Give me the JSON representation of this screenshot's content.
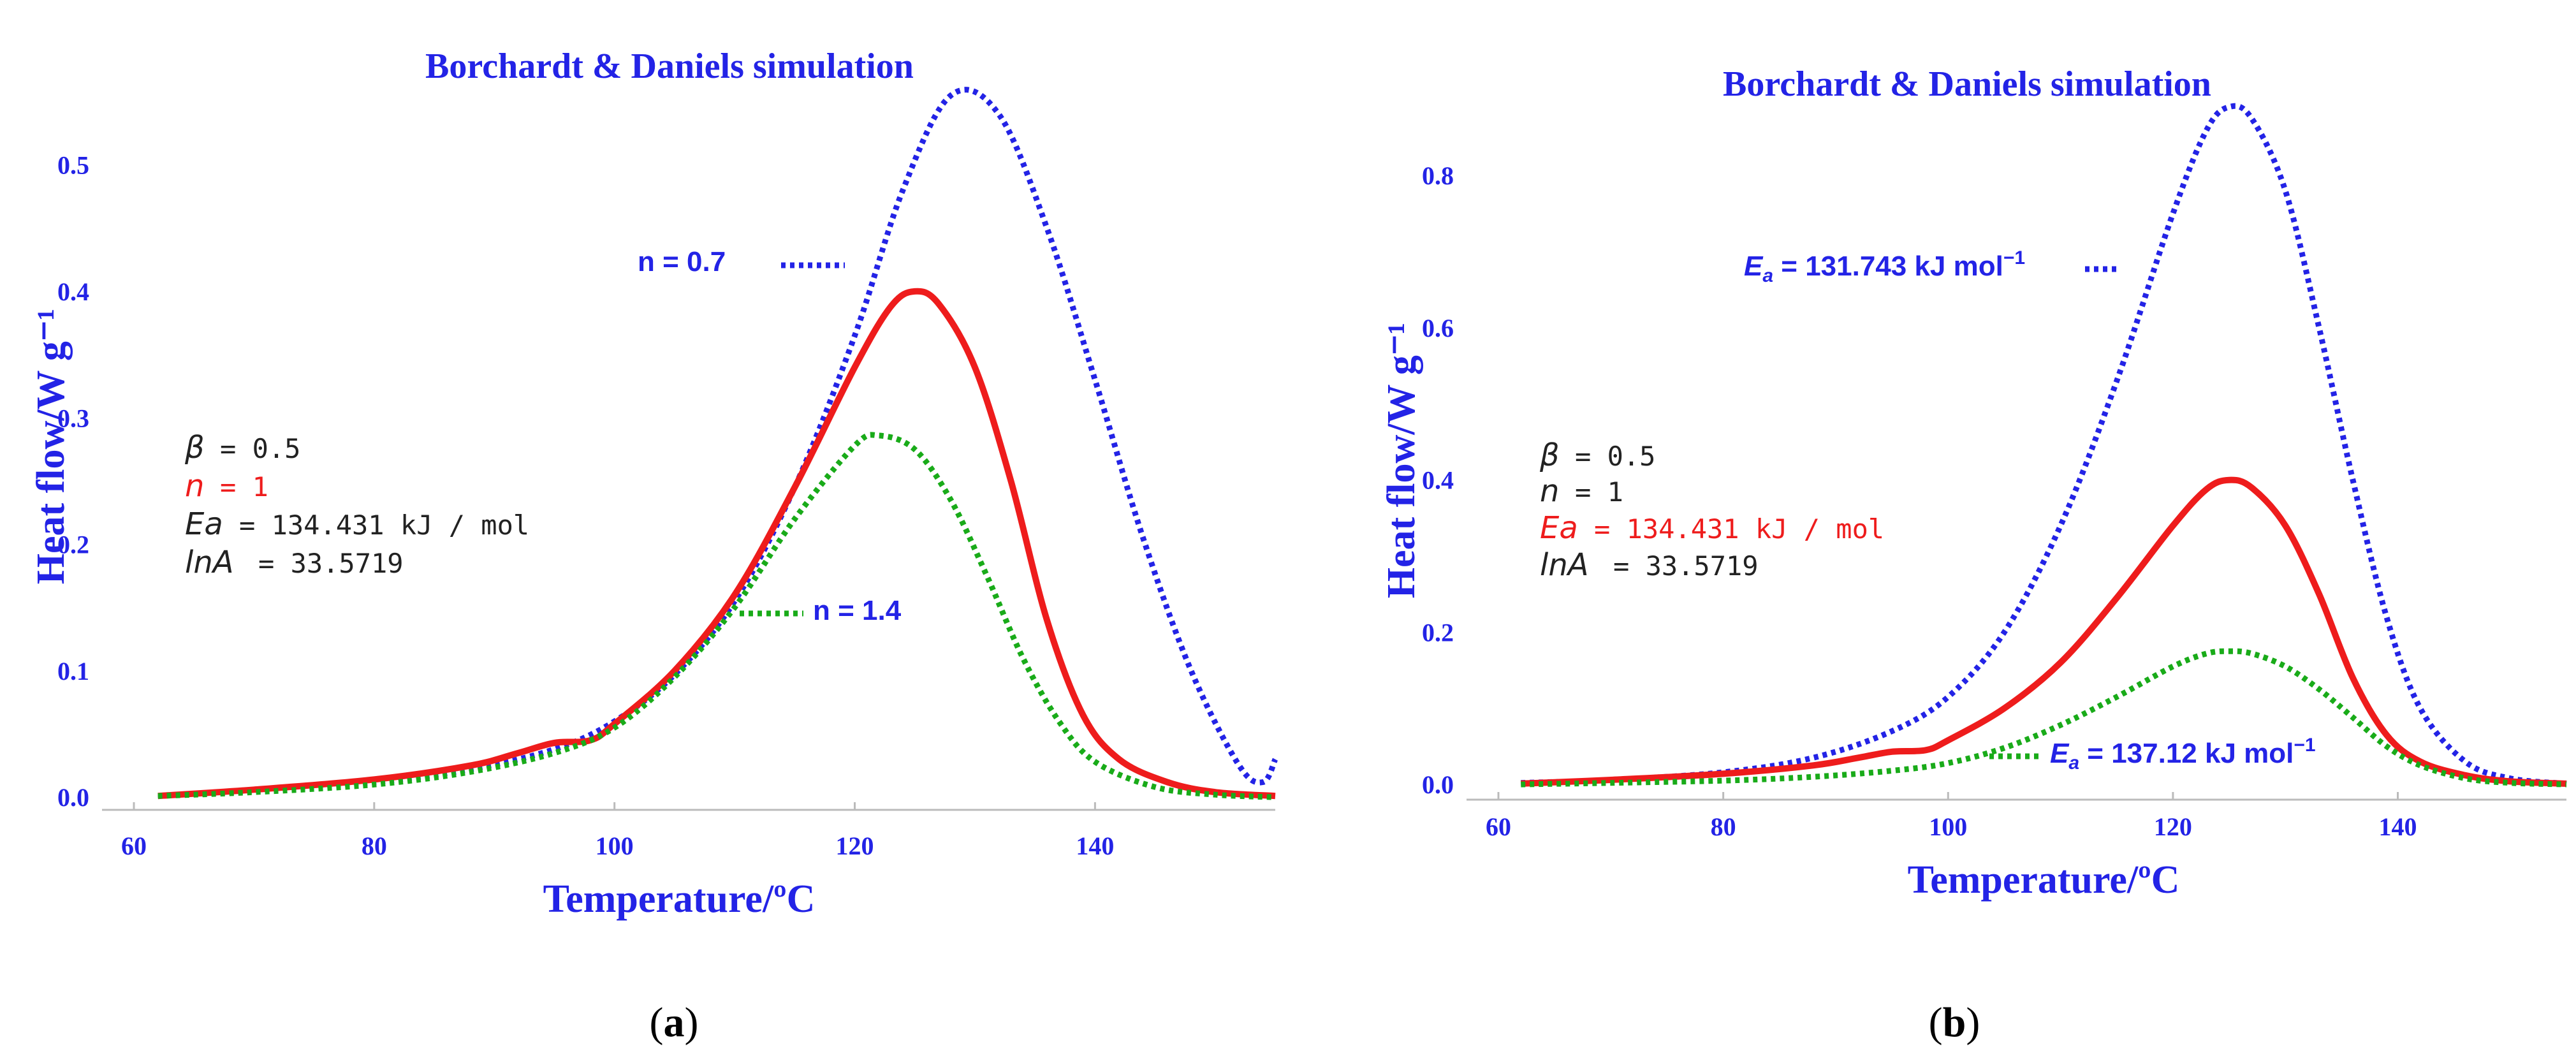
{
  "colors": {
    "blue": "#2323e6",
    "red": "#ee1c1c",
    "green": "#19ab19",
    "black": "#222222"
  },
  "chart_data": [
    {
      "type": "line",
      "panel_label": "a",
      "title": "Borchardt & Daniels simulation",
      "xlabel": "Temperature/ºC",
      "ylabel": "Heat flow/W g⁻¹",
      "xlim": [
        60,
        155
      ],
      "ylim": [
        -0.01,
        0.58
      ],
      "xticks": [
        60,
        80,
        100,
        120,
        140
      ],
      "xtick_labels": [
        "60",
        "80",
        "100",
        "120",
        "140"
      ],
      "yticks": [
        0.0,
        0.1,
        0.2,
        0.3,
        0.4,
        0.5
      ],
      "ytick_labels": [
        "0.0",
        "0.1",
        "0.2",
        "0.3",
        "0.4",
        "0.5"
      ],
      "params": [
        {
          "sym": "β",
          "val": "= 0.5",
          "color": "black"
        },
        {
          "sym": "n",
          "val": "= 1",
          "color": "red"
        },
        {
          "sym": "Ea",
          "val": "= 134.431 kJ / mol",
          "color": "black"
        },
        {
          "sym": "lnA",
          "val": "= 33.5719",
          "color": "black"
        }
      ],
      "annotations": [
        {
          "text": "n = 0.7",
          "series": "n=0.7"
        },
        {
          "text": "n = 1.4",
          "series": "n=1.4"
        }
      ],
      "series": [
        {
          "name": "n=0.7",
          "color": "blue",
          "style": "dotted",
          "x": [
            62,
            70,
            80,
            88,
            95,
            100,
            105,
            110,
            115,
            120,
            124,
            128,
            132,
            136,
            140,
            144,
            148,
            152,
            154,
            155
          ],
          "y": [
            0.001,
            0.005,
            0.012,
            0.022,
            0.038,
            0.06,
            0.097,
            0.155,
            0.245,
            0.365,
            0.48,
            0.555,
            0.54,
            0.45,
            0.33,
            0.205,
            0.1,
            0.025,
            0.012,
            0.03
          ]
        },
        {
          "name": "n=1",
          "color": "red",
          "style": "solid",
          "x": [
            62,
            70,
            80,
            88,
            92,
            95,
            98,
            100,
            105,
            110,
            115,
            120,
            123,
            125,
            127,
            130,
            133,
            136,
            139,
            142,
            146,
            150,
            155
          ],
          "y": [
            0.001,
            0.006,
            0.014,
            0.025,
            0.035,
            0.043,
            0.045,
            0.058,
            0.1,
            0.16,
            0.245,
            0.34,
            0.388,
            0.4,
            0.39,
            0.34,
            0.25,
            0.14,
            0.065,
            0.03,
            0.012,
            0.004,
            0.001
          ]
        },
        {
          "name": "n=1.4",
          "color": "green",
          "style": "dotted",
          "x": [
            62,
            70,
            80,
            88,
            95,
            100,
            105,
            110,
            115,
            120,
            122,
            125,
            128,
            131,
            134,
            137,
            140,
            145,
            150,
            155
          ],
          "y": [
            0.001,
            0.004,
            0.01,
            0.02,
            0.035,
            0.055,
            0.095,
            0.15,
            0.22,
            0.278,
            0.286,
            0.275,
            0.235,
            0.175,
            0.11,
            0.06,
            0.028,
            0.008,
            0.002,
            0.0
          ]
        }
      ]
    },
    {
      "type": "line",
      "panel_label": "b",
      "title": "Borchardt & Daniels simulation",
      "xlabel": "Temperature/ºC",
      "ylabel": "Heat flow/W g⁻¹",
      "xlim": [
        60,
        155
      ],
      "ylim": [
        -0.02,
        0.93
      ],
      "xticks": [
        60,
        80,
        100,
        120,
        140
      ],
      "xtick_labels": [
        "60",
        "80",
        "100",
        "120",
        "140"
      ],
      "yticks": [
        0.0,
        0.2,
        0.4,
        0.6,
        0.8
      ],
      "ytick_labels": [
        "0.0",
        "0.2",
        "0.4",
        "0.6",
        "0.8"
      ],
      "params": [
        {
          "sym": "β",
          "val": "= 0.5",
          "color": "black"
        },
        {
          "sym": "n",
          "val": "= 1",
          "color": "black"
        },
        {
          "sym": "Ea",
          "val": "= 134.431 kJ / mol",
          "color": "red"
        },
        {
          "sym": "lnA",
          "val": "= 33.5719",
          "color": "black"
        }
      ],
      "annotations": [
        {
          "sym": "E",
          "sub": "a",
          "text": " = 131.743 kJ mol",
          "sup": "−1",
          "series": "Ea=131.743"
        },
        {
          "sym": "E",
          "sub": "a",
          "text": " = 137.12 kJ mol",
          "sup": "−1",
          "series": "Ea=137.12"
        }
      ],
      "series": [
        {
          "name": "Ea=131.743",
          "color": "blue",
          "style": "dotted",
          "x": [
            62,
            70,
            80,
            88,
            95,
            100,
            105,
            110,
            115,
            120,
            123,
            125,
            127,
            130,
            133,
            136,
            139,
            142,
            146,
            150,
            155
          ],
          "y": [
            0.002,
            0.006,
            0.016,
            0.035,
            0.07,
            0.115,
            0.2,
            0.34,
            0.53,
            0.75,
            0.86,
            0.89,
            0.875,
            0.78,
            0.6,
            0.4,
            0.22,
            0.1,
            0.03,
            0.008,
            0.001
          ]
        },
        {
          "name": "Ea=134.431",
          "color": "red",
          "style": "solid",
          "x": [
            62,
            70,
            80,
            88,
            92,
            95,
            98,
            100,
            105,
            110,
            115,
            120,
            123,
            125,
            127,
            130,
            133,
            136,
            139,
            142,
            146,
            150,
            155
          ],
          "y": [
            0.001,
            0.006,
            0.014,
            0.025,
            0.035,
            0.043,
            0.045,
            0.058,
            0.1,
            0.16,
            0.245,
            0.34,
            0.388,
            0.4,
            0.39,
            0.34,
            0.25,
            0.14,
            0.065,
            0.03,
            0.012,
            0.004,
            0.001
          ]
        },
        {
          "name": "Ea=137.12",
          "color": "green",
          "style": "dotted",
          "x": [
            62,
            70,
            80,
            88,
            95,
            100,
            105,
            110,
            115,
            120,
            123,
            125,
            127,
            130,
            133,
            136,
            139,
            142,
            146,
            150,
            155
          ],
          "y": [
            0.0,
            0.002,
            0.005,
            0.01,
            0.018,
            0.028,
            0.048,
            0.078,
            0.115,
            0.155,
            0.172,
            0.175,
            0.172,
            0.155,
            0.125,
            0.088,
            0.05,
            0.025,
            0.008,
            0.002,
            0.0
          ]
        }
      ]
    }
  ]
}
